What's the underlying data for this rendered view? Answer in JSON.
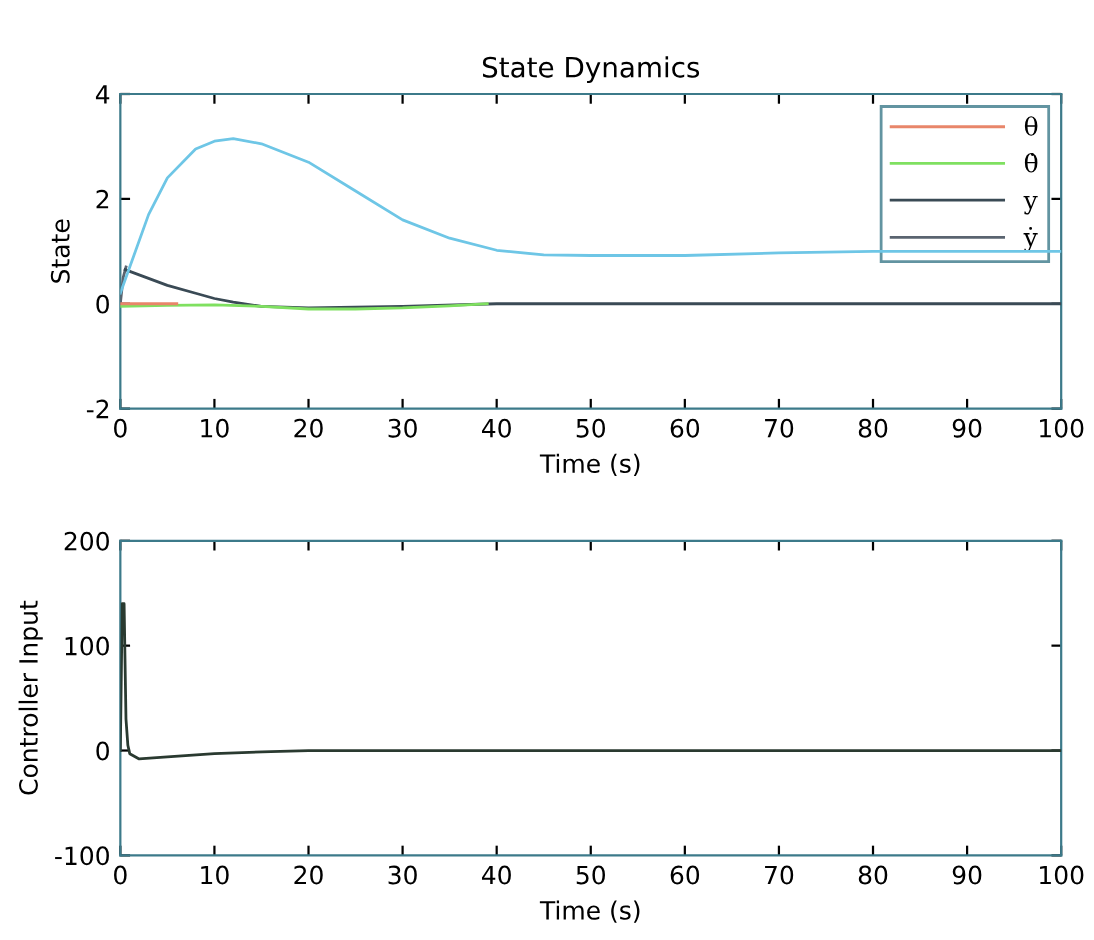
{
  "chart_data": [
    {
      "type": "line",
      "title": "State Dynamics",
      "xlabel": "Time (s)",
      "ylabel": "State",
      "xlim": [
        0,
        100
      ],
      "ylim": [
        -2,
        4
      ],
      "xticks": [
        0,
        10,
        20,
        30,
        40,
        50,
        60,
        70,
        80,
        90,
        100
      ],
      "yticks": [
        -2,
        0,
        2,
        4
      ],
      "grid": false,
      "legend": "top right",
      "series": [
        {
          "color": "#6ec6e6",
          "x": [
            0,
            1,
            3,
            5,
            8,
            10,
            12,
            15,
            20,
            25,
            30,
            35,
            40,
            45,
            50,
            60,
            70,
            80,
            90,
            100
          ],
          "values": [
            0.2,
            0.7,
            1.7,
            2.4,
            2.95,
            3.1,
            3.15,
            3.05,
            2.7,
            2.15,
            1.6,
            1.25,
            1.02,
            0.93,
            0.92,
            0.92,
            0.97,
            1.0,
            1.0,
            1.0
          ]
        },
        {
          "name": "θ",
          "color": "#e8866a",
          "x": [
            0,
            3,
            6
          ],
          "values": [
            0,
            0,
            0
          ]
        },
        {
          "name": "θ̇",
          "color": "#7fe060",
          "x": [
            0,
            5,
            10,
            15,
            20,
            25,
            30,
            35,
            39
          ],
          "values": [
            -0.05,
            -0.03,
            -0.02,
            -0.05,
            -0.1,
            -0.1,
            -0.08,
            -0.04,
            0
          ]
        },
        {
          "name": "y",
          "color": "#3a4a55",
          "x": [
            0.5,
            2,
            5,
            8,
            10,
            12,
            15,
            20,
            30,
            40,
            60,
            80,
            100
          ],
          "values": [
            0.65,
            0.55,
            0.35,
            0.2,
            0.1,
            0.03,
            -0.05,
            -0.08,
            -0.05,
            0,
            0,
            0,
            0
          ]
        },
        {
          "name": "ẏ",
          "color": "#5a6470",
          "x": [
            0,
            0.3,
            0.6
          ],
          "values": [
            0,
            0.5,
            0.7
          ]
        }
      ]
    },
    {
      "type": "line",
      "xlabel": "Time (s)",
      "ylabel": "Controller Input",
      "xlim": [
        0,
        100
      ],
      "ylim": [
        -100,
        200
      ],
      "xticks": [
        0,
        10,
        20,
        30,
        40,
        50,
        60,
        70,
        80,
        90,
        100
      ],
      "yticks": [
        -100,
        0,
        100,
        200
      ],
      "grid": false,
      "series": [
        {
          "color": "#2a3a30",
          "x": [
            0,
            0.2,
            0.4,
            0.6,
            0.8,
            1,
            2,
            5,
            10,
            16,
            20,
            100
          ],
          "values": [
            0,
            140,
            140,
            30,
            5,
            -3,
            -8,
            -6,
            -3,
            -1,
            0,
            0
          ]
        }
      ]
    }
  ]
}
